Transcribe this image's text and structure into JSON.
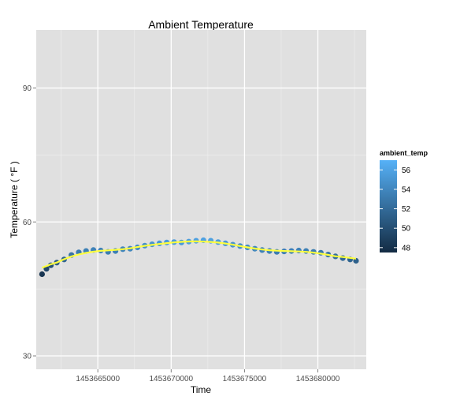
{
  "chart_data": {
    "type": "scatter",
    "title": "Ambient Temperature",
    "xlabel": "Time",
    "ylabel": "Temperature ( °F )",
    "xlim": [
      1453660800,
      1453683300
    ],
    "ylim": [
      27,
      103
    ],
    "x_ticks": [
      1453665000,
      1453670000,
      1453675000,
      1453680000
    ],
    "x_tick_labels": [
      "1453665000",
      "1453670000",
      "1453675000",
      "1453680000"
    ],
    "y_ticks": [
      30,
      60,
      90
    ],
    "y_tick_labels": [
      "30",
      "60",
      "90"
    ],
    "grid": true,
    "background": "#e0e0e0",
    "smooth_color": "#ffff3f",
    "points": [
      {
        "x": 1453661200,
        "y": 48.3
      },
      {
        "x": 1453661500,
        "y": 49.5
      },
      {
        "x": 1453661800,
        "y": 50.3
      },
      {
        "x": 1453662200,
        "y": 50.9
      },
      {
        "x": 1453662700,
        "y": 51.6
      },
      {
        "x": 1453663200,
        "y": 52.6
      },
      {
        "x": 1453663700,
        "y": 53.2
      },
      {
        "x": 1453664200,
        "y": 53.5
      },
      {
        "x": 1453664700,
        "y": 53.7
      },
      {
        "x": 1453665200,
        "y": 53.6
      },
      {
        "x": 1453665700,
        "y": 53.3
      },
      {
        "x": 1453666200,
        "y": 53.5
      },
      {
        "x": 1453666700,
        "y": 53.9
      },
      {
        "x": 1453667200,
        "y": 54.0
      },
      {
        "x": 1453667700,
        "y": 54.3
      },
      {
        "x": 1453668200,
        "y": 54.7
      },
      {
        "x": 1453668700,
        "y": 55.0
      },
      {
        "x": 1453669200,
        "y": 55.2
      },
      {
        "x": 1453669700,
        "y": 55.4
      },
      {
        "x": 1453670200,
        "y": 55.5
      },
      {
        "x": 1453670700,
        "y": 55.4
      },
      {
        "x": 1453671200,
        "y": 55.6
      },
      {
        "x": 1453671700,
        "y": 55.8
      },
      {
        "x": 1453672200,
        "y": 55.9
      },
      {
        "x": 1453672700,
        "y": 55.8
      },
      {
        "x": 1453673200,
        "y": 55.5
      },
      {
        "x": 1453673700,
        "y": 55.2
      },
      {
        "x": 1453674200,
        "y": 54.9
      },
      {
        "x": 1453674700,
        "y": 54.6
      },
      {
        "x": 1453675200,
        "y": 54.3
      },
      {
        "x": 1453675700,
        "y": 54.0
      },
      {
        "x": 1453676200,
        "y": 53.7
      },
      {
        "x": 1453676700,
        "y": 53.5
      },
      {
        "x": 1453677200,
        "y": 53.3
      },
      {
        "x": 1453677700,
        "y": 53.4
      },
      {
        "x": 1453678200,
        "y": 53.5
      },
      {
        "x": 1453678700,
        "y": 53.6
      },
      {
        "x": 1453679200,
        "y": 53.5
      },
      {
        "x": 1453679700,
        "y": 53.3
      },
      {
        "x": 1453680200,
        "y": 53.1
      },
      {
        "x": 1453680700,
        "y": 52.7
      },
      {
        "x": 1453681200,
        "y": 52.3
      },
      {
        "x": 1453681700,
        "y": 51.9
      },
      {
        "x": 1453682200,
        "y": 51.6
      },
      {
        "x": 1453682600,
        "y": 51.3
      }
    ],
    "legend": {
      "title": "ambient_temp",
      "position": "right",
      "color_low": "#132b43",
      "color_high": "#56b1f7",
      "range": [
        47.5,
        57
      ],
      "breaks": [
        48,
        50,
        52,
        54,
        56
      ],
      "labels": [
        "48",
        "50",
        "52",
        "54",
        "56"
      ]
    }
  }
}
